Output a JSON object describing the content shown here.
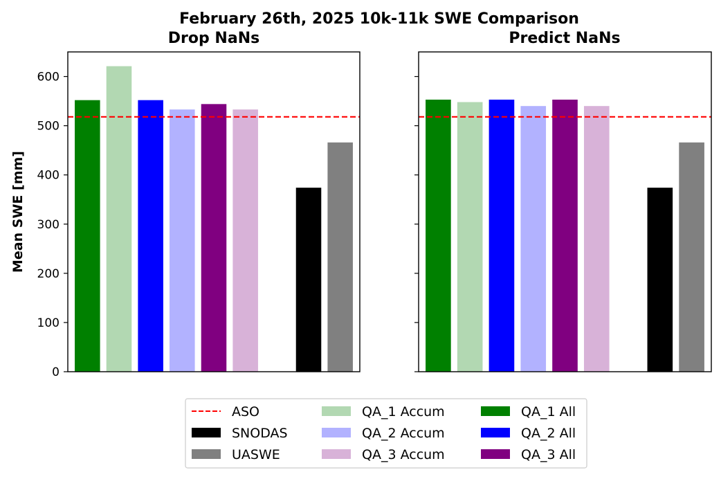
{
  "figure": {
    "suptitle": "February 26th, 2025 10k-11k SWE Comparison"
  },
  "chart_data": [
    {
      "type": "bar",
      "title": "Drop NaNs",
      "ylabel": "Mean SWE [mm]",
      "xlabel": "",
      "ylim": [
        0,
        650
      ],
      "yticks": [
        0,
        100,
        200,
        300,
        400,
        500,
        600
      ],
      "reference_line": {
        "name": "ASO",
        "value": 518,
        "color": "#ff0000",
        "style": "dashed"
      },
      "bars": [
        {
          "name": "QA_1 All",
          "value": 552,
          "color": "#008000"
        },
        {
          "name": "QA_1 Accum",
          "value": 621,
          "color": "#b2d8b2"
        },
        {
          "name": "QA_2 All",
          "value": 552,
          "color": "#0000ff"
        },
        {
          "name": "QA_2 Accum",
          "value": 533,
          "color": "#b2b2ff"
        },
        {
          "name": "QA_3 All",
          "value": 544,
          "color": "#800080"
        },
        {
          "name": "QA_3 Accum",
          "value": 533,
          "color": "#d8b2d8"
        },
        {
          "name": "",
          "value": null,
          "color": ""
        },
        {
          "name": "SNODAS",
          "value": 374,
          "color": "#000000"
        },
        {
          "name": "UASWE",
          "value": 466,
          "color": "#808080"
        }
      ]
    },
    {
      "type": "bar",
      "title": "Predict NaNs",
      "ylabel": "",
      "xlabel": "",
      "ylim": [
        0,
        650
      ],
      "yticks": [
        0,
        100,
        200,
        300,
        400,
        500,
        600
      ],
      "reference_line": {
        "name": "ASO",
        "value": 518,
        "color": "#ff0000",
        "style": "dashed"
      },
      "bars": [
        {
          "name": "QA_1 All",
          "value": 553,
          "color": "#008000"
        },
        {
          "name": "QA_1 Accum",
          "value": 548,
          "color": "#b2d8b2"
        },
        {
          "name": "QA_2 All",
          "value": 553,
          "color": "#0000ff"
        },
        {
          "name": "QA_2 Accum",
          "value": 540,
          "color": "#b2b2ff"
        },
        {
          "name": "QA_3 All",
          "value": 553,
          "color": "#800080"
        },
        {
          "name": "QA_3 Accum",
          "value": 540,
          "color": "#d8b2d8"
        },
        {
          "name": "",
          "value": null,
          "color": ""
        },
        {
          "name": "SNODAS",
          "value": 374,
          "color": "#000000"
        },
        {
          "name": "UASWE",
          "value": 466,
          "color": "#808080"
        }
      ]
    }
  ],
  "legend": {
    "placement": "bottom-center",
    "columns": 3,
    "entries": [
      {
        "label": "ASO",
        "kind": "line",
        "color": "#ff0000"
      },
      {
        "label": "SNODAS",
        "kind": "patch",
        "color": "#000000"
      },
      {
        "label": "UASWE",
        "kind": "patch",
        "color": "#808080"
      },
      {
        "label": "QA_1 Accum",
        "kind": "patch",
        "color": "#b2d8b2"
      },
      {
        "label": "QA_2 Accum",
        "kind": "patch",
        "color": "#b2b2ff"
      },
      {
        "label": "QA_3 Accum",
        "kind": "patch",
        "color": "#d8b2d8"
      },
      {
        "label": "QA_1 All",
        "kind": "patch",
        "color": "#008000"
      },
      {
        "label": "QA_2 All",
        "kind": "patch",
        "color": "#0000ff"
      },
      {
        "label": "QA_3 All",
        "kind": "patch",
        "color": "#800080"
      }
    ]
  }
}
